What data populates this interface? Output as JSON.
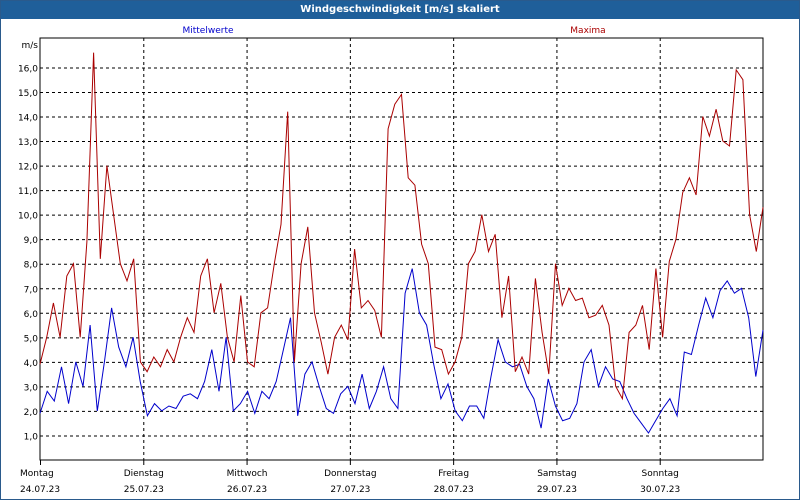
{
  "header": {
    "title": "Windgeschwindigkeit [m/s] skaliert"
  },
  "colors": {
    "title_bg": "#1f5f9a",
    "mean": "#0000cc",
    "max": "#aa0000",
    "axis": "#000000"
  },
  "chart_data": {
    "type": "line",
    "title": "Windgeschwindigkeit [m/s] skaliert",
    "ylabel": "m/s",
    "xlabel": "",
    "ylim": [
      0,
      17.2
    ],
    "xlim": [
      0,
      7
    ],
    "y_ticks": [
      "1,0",
      "2,0",
      "3,0",
      "4,0",
      "5,0",
      "6,0",
      "7,0",
      "8,0",
      "9,0",
      "10,0",
      "11,0",
      "12,0",
      "13,0",
      "14,0",
      "15,0",
      "16,0"
    ],
    "days": [
      {
        "name": "Montag",
        "date": "24.07.23"
      },
      {
        "name": "Dienstag",
        "date": "25.07.23"
      },
      {
        "name": "Mittwoch",
        "date": "26.07.23"
      },
      {
        "name": "Donnerstag",
        "date": "27.07.23"
      },
      {
        "name": "Freitag",
        "date": "28.07.23"
      },
      {
        "name": "Samstag",
        "date": "29.07.23"
      },
      {
        "name": "Sonntag",
        "date": "30.07.23"
      }
    ],
    "grid": true,
    "series": [
      {
        "name": "Mittelwerte",
        "values": [
          1.9,
          2.8,
          2.4,
          3.8,
          2.3,
          4.0,
          3.0,
          5.5,
          2.0,
          4.0,
          6.2,
          4.6,
          3.8,
          5.0,
          3.2,
          1.8,
          2.3,
          2.0,
          2.2,
          2.1,
          2.6,
          2.7,
          2.5,
          3.2,
          4.5,
          2.8,
          5.0,
          2.0,
          2.3,
          2.8,
          1.9,
          2.8,
          2.5,
          3.2,
          4.5,
          5.8,
          1.8,
          3.5,
          4.0,
          3.0,
          2.1,
          1.9,
          2.7,
          3.0,
          2.3,
          3.5,
          2.1,
          2.8,
          3.8,
          2.5,
          2.1,
          6.8,
          7.8,
          6.0,
          5.5,
          3.9,
          2.5,
          3.1,
          2.0,
          1.6,
          2.2,
          2.2,
          1.7,
          3.4,
          4.9,
          4.0,
          3.8,
          3.9,
          3.0,
          2.5,
          1.3,
          3.3,
          2.2,
          1.6,
          1.7,
          2.3,
          4.0,
          4.5,
          3.0,
          3.8,
          3.3,
          3.2,
          2.5,
          1.9,
          1.5,
          1.1,
          1.6,
          2.1,
          2.5,
          1.8,
          4.4,
          4.3,
          5.5,
          6.6,
          5.8,
          6.9,
          7.3,
          6.8,
          7.0,
          5.8,
          3.4,
          5.3
        ]
      },
      {
        "name": "Maxima",
        "values": [
          3.9,
          5.0,
          6.4,
          5.0,
          7.5,
          8.0,
          5.0,
          8.9,
          16.6,
          8.2,
          12.0,
          10.0,
          8.0,
          7.3,
          8.2,
          4.0,
          3.6,
          4.2,
          3.8,
          4.5,
          4.0,
          5.0,
          5.8,
          5.2,
          7.5,
          8.2,
          6.0,
          7.2,
          5.0,
          4.0,
          6.7,
          4.0,
          3.8,
          6.0,
          6.2,
          8.0,
          9.6,
          14.2,
          4.0,
          8.0,
          9.5,
          6.0,
          4.8,
          3.5,
          5.0,
          5.5,
          4.9,
          8.6,
          6.2,
          6.5,
          6.1,
          5.0,
          13.5,
          14.5,
          14.9,
          11.5,
          11.2,
          8.8,
          8.0,
          4.6,
          4.5,
          3.5,
          4.0,
          5.0,
          8.0,
          8.5,
          10.0,
          8.5,
          9.2,
          5.8,
          7.5,
          3.6,
          4.2,
          3.5,
          7.4,
          5.2,
          3.5,
          8.0,
          6.3,
          7.0,
          6.5,
          6.6,
          5.8,
          5.9,
          6.3,
          5.5,
          3.0,
          2.5,
          5.2,
          5.5,
          6.3,
          4.5,
          7.8,
          5.0,
          8.1,
          9.0,
          10.9,
          11.5,
          10.8,
          14.0,
          13.2,
          14.3,
          13.0,
          12.8,
          15.9,
          15.5,
          10.0,
          8.5,
          10.3
        ]
      }
    ]
  }
}
